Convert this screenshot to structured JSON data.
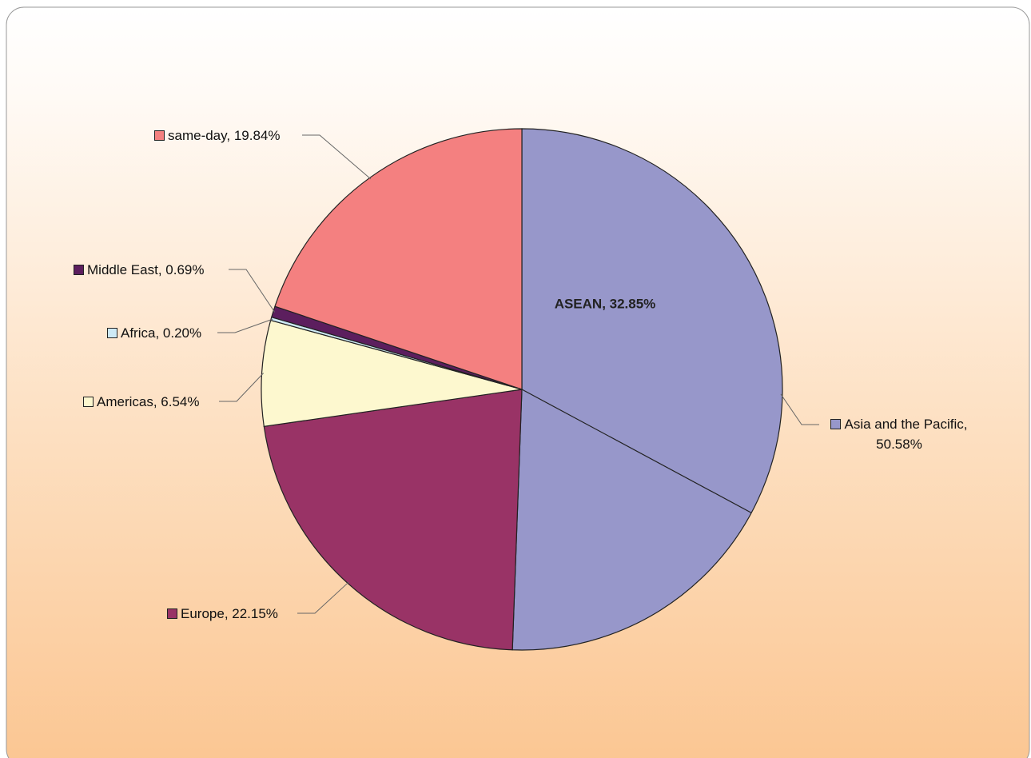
{
  "chart_data": {
    "type": "pie",
    "labels": [
      "Asia and the Pacific, 50.58%",
      "Europe, 22.15%",
      "Americas, 6.54%",
      "Africa, 0.20%",
      "Middle East, 0.69%",
      "same-day, 19.84%"
    ],
    "values": [
      50.58,
      22.15,
      6.54,
      0.2,
      0.69,
      19.84
    ],
    "colors": [
      "#9797ca",
      "#993366",
      "#fdf8cf",
      "#cde9f5",
      "#5c1e5e",
      "#f48080"
    ],
    "annotation": {
      "text": "ASEAN, 32.85%",
      "value": 32.85
    }
  }
}
